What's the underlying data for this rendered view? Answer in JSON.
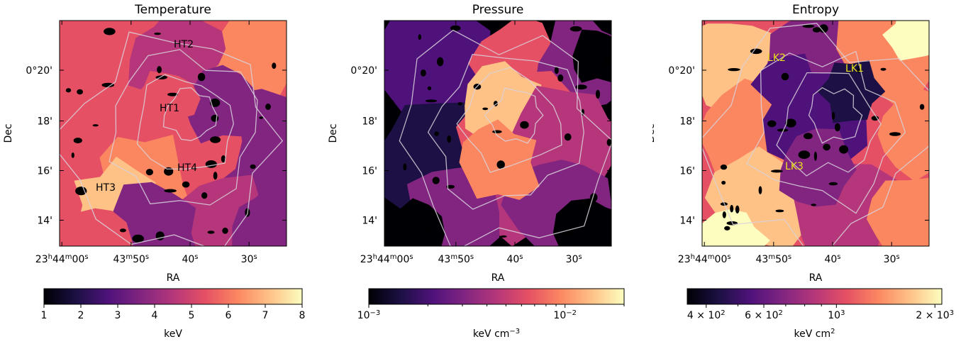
{
  "chart_data": [
    {
      "type": "heatmap",
      "title": "Temperature",
      "xlabel": "RA",
      "ylabel": "Dec",
      "x_ticks": [
        "23h44m00s",
        "43m50s",
        "40s",
        "30s"
      ],
      "y_ticks": [
        "0°20'",
        "18'",
        "16'",
        "14'"
      ],
      "region_labels": [
        "HT1",
        "HT2",
        "HT3",
        "HT4"
      ],
      "colorbar": {
        "label": "keV",
        "scale": "linear",
        "range": [
          1,
          8
        ],
        "ticks": [
          "1",
          "2",
          "3",
          "4",
          "5",
          "6",
          "7",
          "8"
        ],
        "colormap": "magma"
      },
      "colors": {
        "label": "#000000",
        "contour": "#d9d2dc"
      }
    },
    {
      "type": "heatmap",
      "title": "Pressure",
      "xlabel": "RA",
      "ylabel": "Dec",
      "x_ticks": [
        "23h44m00s",
        "43m50s",
        "40s",
        "30s"
      ],
      "y_ticks": [
        "0°20'",
        "18'",
        "16'",
        "14'"
      ],
      "region_labels": [],
      "colorbar": {
        "label": "keV cm-3",
        "scale": "log",
        "range": [
          0.001,
          0.02
        ],
        "ticks": [
          "10-3",
          "10-2"
        ],
        "colormap": "magma"
      },
      "colors": {
        "contour": "#d9d2dc"
      }
    },
    {
      "type": "heatmap",
      "title": "Entropy",
      "xlabel": "RA",
      "ylabel": "Dec",
      "x_ticks": [
        "23h44m00s",
        "43m50s",
        "40s",
        "30s"
      ],
      "y_ticks": [
        "0°20'",
        "18'",
        "16'",
        "14'"
      ],
      "region_labels": [
        "LK1",
        "LK2",
        "LK3"
      ],
      "colorbar": {
        "label": "keV cm2",
        "scale": "log",
        "range": [
          350,
          2100
        ],
        "ticks": [
          "4 × 102",
          "6 × 102",
          "103",
          "2 × 103"
        ],
        "colormap": "magma"
      },
      "colors": {
        "label": "#e8e21a",
        "contour": "#d9d2dc"
      }
    }
  ]
}
